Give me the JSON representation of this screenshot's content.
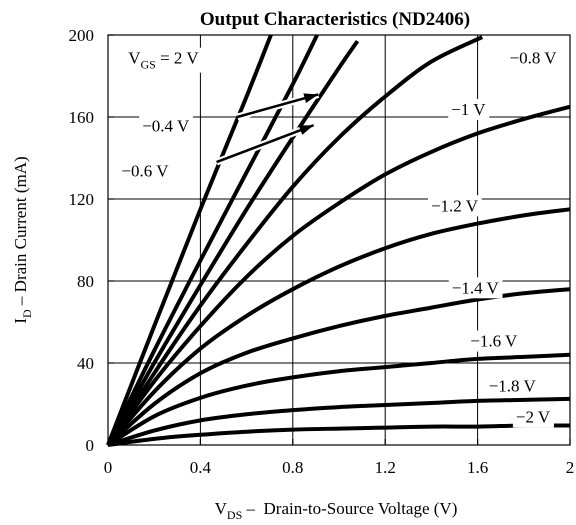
{
  "chart_data": {
    "type": "line",
    "title": "Output Characteristics (ND2406)",
    "xlabel": {
      "main": "V",
      "sub": "DS",
      "rest": " –  Drain-to-Source Voltage (V)"
    },
    "ylabel": {
      "main": "I",
      "sub": "D",
      "rest": " – Drain Current (mA)"
    },
    "xlim": [
      0,
      2
    ],
    "ylim": [
      0,
      200
    ],
    "xticks": [
      0,
      0.4,
      0.8,
      1.2,
      1.6,
      2
    ],
    "xtick_labels": [
      "0",
      "0.4",
      "0.8",
      "1.2",
      "1.6",
      "2"
    ],
    "yticks": [
      0,
      40,
      80,
      120,
      160,
      200
    ],
    "ytick_labels": [
      "0",
      "40",
      "80",
      "120",
      "160",
      "200"
    ],
    "grid": true,
    "line_color": "#000000",
    "series": [
      {
        "name": "V_GS = 2 V",
        "x": [
          0,
          0.2,
          0.4,
          0.6,
          0.705
        ],
        "y": [
          0,
          58,
          115,
          170,
          200
        ]
      },
      {
        "name": "-0.4 V",
        "x": [
          0,
          0.2,
          0.4,
          0.6,
          0.8,
          0.905
        ],
        "y": [
          0,
          46,
          90,
          133,
          176,
          200
        ]
      },
      {
        "name": "-0.6 V",
        "x": [
          0,
          0.2,
          0.4,
          0.6,
          0.8,
          1.0,
          1.08
        ],
        "y": [
          0,
          40,
          78,
          115,
          150,
          184,
          197
        ]
      },
      {
        "name": "-0.8 V",
        "x": [
          0,
          0.2,
          0.4,
          0.6,
          0.8,
          1.0,
          1.2,
          1.4,
          1.62
        ],
        "y": [
          0,
          35,
          68,
          98,
          126,
          150,
          170,
          187,
          199
        ]
      },
      {
        "name": "-1 V",
        "x": [
          0,
          0.2,
          0.4,
          0.6,
          0.8,
          1.0,
          1.2,
          1.4,
          1.6,
          1.8,
          2.0
        ],
        "y": [
          0,
          31,
          58,
          82,
          102,
          118,
          132,
          143,
          152,
          159,
          165
        ]
      },
      {
        "name": "-1.2 V",
        "x": [
          0,
          0.2,
          0.4,
          0.6,
          0.8,
          1.0,
          1.2,
          1.4,
          1.6,
          1.8,
          2.0
        ],
        "y": [
          0,
          26,
          47,
          63,
          76,
          87,
          96,
          103,
          108,
          112,
          115
        ]
      },
      {
        "name": "-1.4 V",
        "x": [
          0,
          0.2,
          0.4,
          0.6,
          0.8,
          1.0,
          1.2,
          1.4,
          1.6,
          1.8,
          2.0
        ],
        "y": [
          0,
          20,
          35,
          45,
          52,
          58,
          63,
          67,
          71,
          74,
          76
        ]
      },
      {
        "name": "-1.6 V",
        "x": [
          0,
          0.2,
          0.4,
          0.6,
          0.8,
          1.0,
          1.2,
          1.4,
          1.6,
          1.8,
          2.0
        ],
        "y": [
          0,
          14,
          23,
          29,
          33,
          36,
          38,
          40,
          42,
          43,
          44
        ]
      },
      {
        "name": "-1.8 V",
        "x": [
          0,
          0.2,
          0.4,
          0.6,
          0.8,
          1.0,
          1.2,
          1.4,
          1.6,
          1.8,
          2.0
        ],
        "y": [
          0,
          7,
          12,
          15,
          17,
          18.5,
          19.5,
          20.5,
          21.5,
          22,
          22.5
        ]
      },
      {
        "name": "-2 V",
        "x": [
          0,
          0.2,
          0.4,
          0.6,
          0.8,
          1.0,
          1.2,
          1.4,
          1.6,
          1.8,
          2.0
        ],
        "y": [
          0,
          3,
          5,
          6.5,
          7.5,
          8,
          8.5,
          9,
          9,
          9.5,
          9.5
        ]
      }
    ],
    "annotations": [
      {
        "text_main": "V",
        "text_sub": "GS",
        "text_rest": " = 2 V",
        "x": 0.24,
        "y": 186
      },
      {
        "text": "−0.4 V",
        "x": 0.25,
        "y": 153
      },
      {
        "text": "−0.6 V",
        "x": 0.16,
        "y": 131
      },
      {
        "text": "−0.8 V",
        "x": 1.84,
        "y": 186
      },
      {
        "text": "−1 V",
        "x": 1.56,
        "y": 161
      },
      {
        "text": "−1.2 V",
        "x": 1.5,
        "y": 114
      },
      {
        "text": "−1.4 V",
        "x": 1.59,
        "y": 74
      },
      {
        "text": "−1.6 V",
        "x": 1.67,
        "y": 48
      },
      {
        "text": "−1.8 V",
        "x": 1.75,
        "y": 26
      },
      {
        "text": "−2 V",
        "x": 1.84,
        "y": 11
      }
    ],
    "arrows": [
      {
        "from": [
          0.56,
          160
        ],
        "to": [
          0.91,
          171
        ]
      },
      {
        "from": [
          0.47,
          138
        ],
        "to": [
          0.89,
          156
        ]
      }
    ]
  }
}
